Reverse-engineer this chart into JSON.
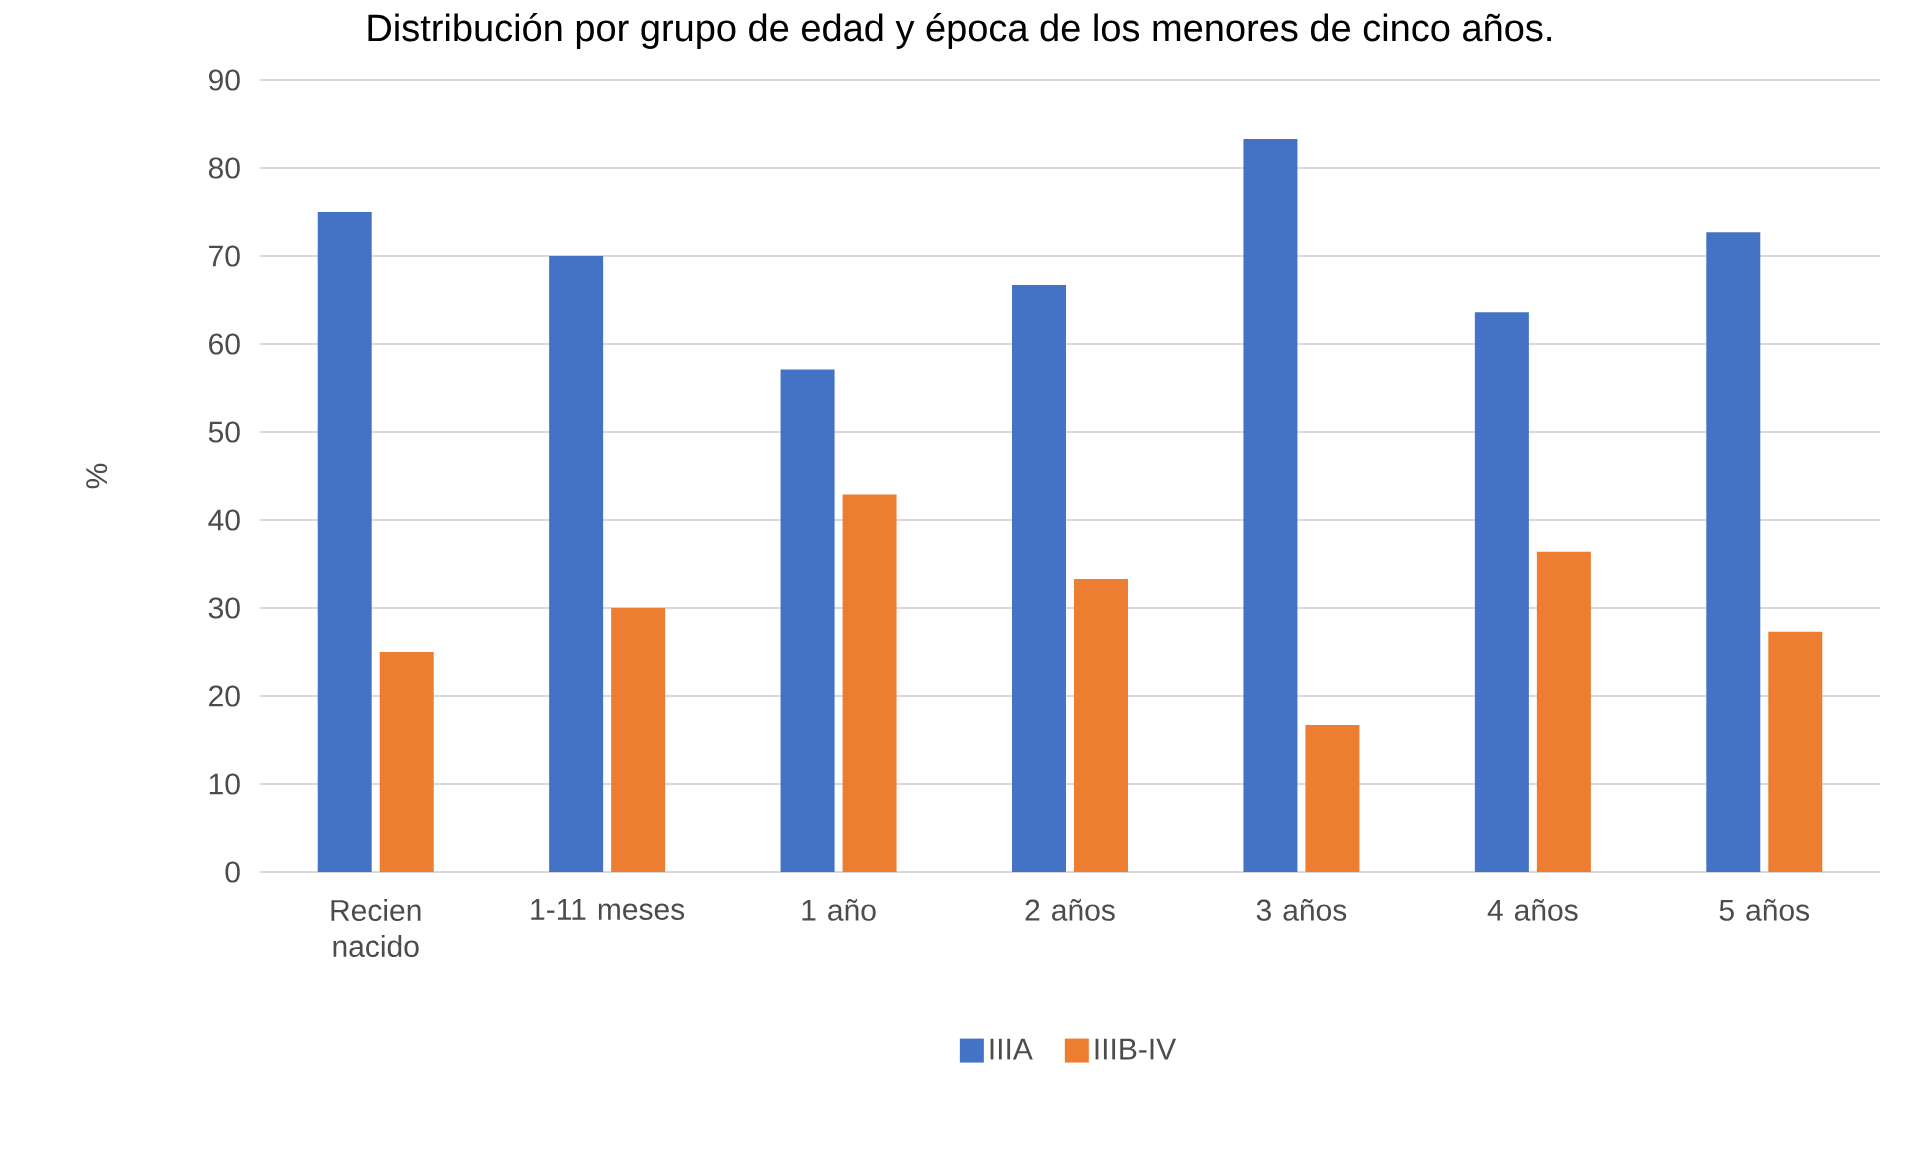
{
  "chart_data": {
    "type": "bar",
    "title": "Distribución por grupo de edad y época de los menores de cinco años.",
    "ylabel": "%",
    "categories": [
      "Recien nacido",
      "1-11 meses",
      "1 año",
      "2 años",
      "3 años",
      "4 años",
      "5 años"
    ],
    "series": [
      {
        "name": "IIIA",
        "color": "#4472c4",
        "values": [
          75,
          70,
          57.1,
          66.7,
          83.3,
          63.6,
          72.7
        ]
      },
      {
        "name": "IIIB-IV",
        "color": "#ed7d31",
        "values": [
          25,
          30,
          42.9,
          33.3,
          16.7,
          36.4,
          27.3
        ]
      }
    ],
    "ylim": [
      0,
      90
    ],
    "yticks": [
      0,
      10,
      20,
      30,
      40,
      50,
      60,
      70,
      80,
      90
    ],
    "grid": "y",
    "legend": "bottom"
  }
}
